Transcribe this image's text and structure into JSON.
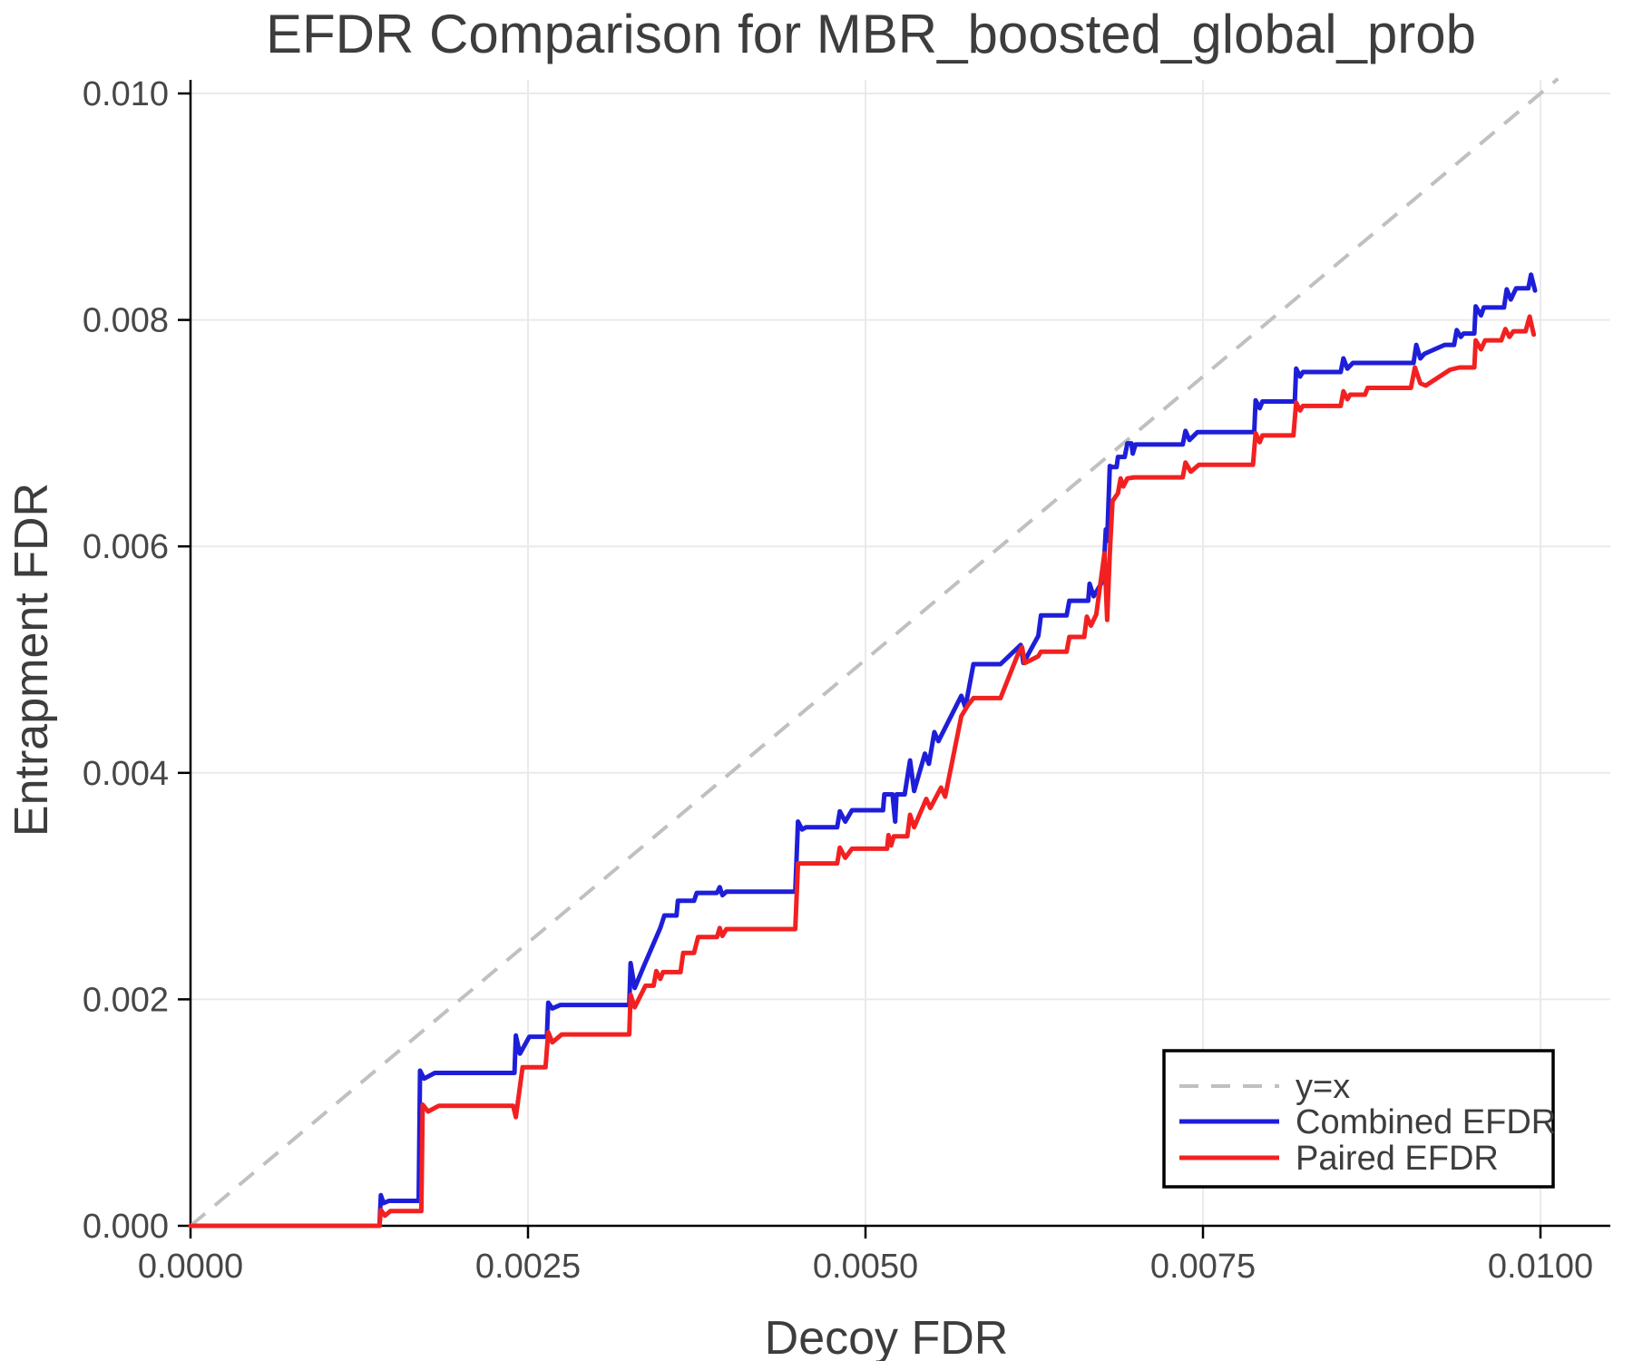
{
  "chart_data": {
    "type": "line",
    "title": "EFDR Comparison for MBR_boosted_global_prob",
    "xlabel": "Decoy FDR",
    "ylabel": "Entrapment FDR",
    "xlim": [
      0.0,
      0.0103
    ],
    "ylim": [
      0.0,
      0.0101
    ],
    "x_ticks": [
      0.0,
      0.0025,
      0.005,
      0.0075,
      0.01
    ],
    "x_tick_labels": [
      "0.0000",
      "0.0025",
      "0.0050",
      "0.0075",
      "0.0100"
    ],
    "y_ticks": [
      0.0,
      0.002,
      0.004,
      0.006,
      0.008,
      0.01
    ],
    "y_tick_labels": [
      "0.000",
      "0.002",
      "0.004",
      "0.006",
      "0.008",
      "0.010"
    ],
    "grid": true,
    "legend_position": "lower right",
    "reference_line": {
      "label": "y=x",
      "style": "dashed",
      "color": "#c0c0c0",
      "points": [
        [
          0.0,
          0.0
        ],
        [
          0.01013,
          0.01013
        ]
      ]
    },
    "series": [
      {
        "name": "Combined EFDR",
        "color": "#1e1ed9",
        "points": [
          [
            0.0,
            0.0
          ],
          [
            0.0014,
            0.0
          ],
          [
            0.00141,
            0.00027
          ],
          [
            0.00143,
            0.0002
          ],
          [
            0.00147,
            0.00022
          ],
          [
            0.00169,
            0.00022
          ],
          [
            0.0017,
            0.00137
          ],
          [
            0.00173,
            0.0013
          ],
          [
            0.00181,
            0.00135
          ],
          [
            0.0024,
            0.00135
          ],
          [
            0.00241,
            0.00168
          ],
          [
            0.00244,
            0.00152
          ],
          [
            0.00251,
            0.00167
          ],
          [
            0.00264,
            0.00167
          ],
          [
            0.00265,
            0.00197
          ],
          [
            0.00268,
            0.00192
          ],
          [
            0.00274,
            0.00195
          ],
          [
            0.00325,
            0.00195
          ],
          [
            0.00326,
            0.00232
          ],
          [
            0.00329,
            0.0021
          ],
          [
            0.00336,
            0.0023
          ],
          [
            0.00348,
            0.00263
          ],
          [
            0.00351,
            0.00274
          ],
          [
            0.0036,
            0.00274
          ],
          [
            0.00361,
            0.00287
          ],
          [
            0.00373,
            0.00287
          ],
          [
            0.00375,
            0.00294
          ],
          [
            0.0039,
            0.00294
          ],
          [
            0.00392,
            0.00299
          ],
          [
            0.00394,
            0.00292
          ],
          [
            0.00397,
            0.00295
          ],
          [
            0.00448,
            0.00295
          ],
          [
            0.0045,
            0.00357
          ],
          [
            0.00453,
            0.0035
          ],
          [
            0.00456,
            0.00352
          ],
          [
            0.00479,
            0.00352
          ],
          [
            0.00481,
            0.00366
          ],
          [
            0.00485,
            0.00357
          ],
          [
            0.0049,
            0.00367
          ],
          [
            0.00513,
            0.00367
          ],
          [
            0.00514,
            0.00381
          ],
          [
            0.0052,
            0.00381
          ],
          [
            0.00522,
            0.00357
          ],
          [
            0.00523,
            0.00381
          ],
          [
            0.00529,
            0.00381
          ],
          [
            0.00533,
            0.00411
          ],
          [
            0.00536,
            0.00384
          ],
          [
            0.00544,
            0.00417
          ],
          [
            0.00547,
            0.00408
          ],
          [
            0.00551,
            0.00436
          ],
          [
            0.00554,
            0.00428
          ],
          [
            0.00571,
            0.00468
          ],
          [
            0.00574,
            0.00458
          ],
          [
            0.0058,
            0.00496
          ],
          [
            0.006,
            0.00496
          ],
          [
            0.00615,
            0.00513
          ],
          [
            0.00617,
            0.00497
          ],
          [
            0.00628,
            0.00521
          ],
          [
            0.0063,
            0.00539
          ],
          [
            0.00649,
            0.00539
          ],
          [
            0.00651,
            0.00552
          ],
          [
            0.00665,
            0.00552
          ],
          [
            0.00666,
            0.00567
          ],
          [
            0.00669,
            0.00556
          ],
          [
            0.00676,
            0.0057
          ],
          [
            0.00678,
            0.00615
          ],
          [
            0.00679,
            0.00605
          ],
          [
            0.00681,
            0.00671
          ],
          [
            0.00683,
            0.0067
          ],
          [
            0.00686,
            0.0067
          ],
          [
            0.00687,
            0.00679
          ],
          [
            0.00692,
            0.00679
          ],
          [
            0.00694,
            0.00691
          ],
          [
            0.00697,
            0.00691
          ],
          [
            0.00698,
            0.00682
          ],
          [
            0.007,
            0.0069
          ],
          [
            0.00735,
            0.0069
          ],
          [
            0.00737,
            0.00702
          ],
          [
            0.0074,
            0.00694
          ],
          [
            0.00746,
            0.00701
          ],
          [
            0.00788,
            0.00701
          ],
          [
            0.00789,
            0.00729
          ],
          [
            0.00792,
            0.00722
          ],
          [
            0.00794,
            0.00728
          ],
          [
            0.00818,
            0.00728
          ],
          [
            0.00819,
            0.00757
          ],
          [
            0.00822,
            0.0075
          ],
          [
            0.00824,
            0.00754
          ],
          [
            0.00852,
            0.00754
          ],
          [
            0.00854,
            0.00766
          ],
          [
            0.00857,
            0.00757
          ],
          [
            0.00861,
            0.00762
          ],
          [
            0.00906,
            0.00762
          ],
          [
            0.00908,
            0.00778
          ],
          [
            0.00911,
            0.00766
          ],
          [
            0.00914,
            0.0077
          ],
          [
            0.00929,
            0.00778
          ],
          [
            0.00936,
            0.00778
          ],
          [
            0.00938,
            0.00791
          ],
          [
            0.00941,
            0.00785
          ],
          [
            0.00943,
            0.00788
          ],
          [
            0.00951,
            0.00788
          ],
          [
            0.00952,
            0.00812
          ],
          [
            0.00956,
            0.00804
          ],
          [
            0.00958,
            0.00811
          ],
          [
            0.00973,
            0.00811
          ],
          [
            0.00975,
            0.00827
          ],
          [
            0.00978,
            0.00818
          ],
          [
            0.00982,
            0.00828
          ],
          [
            0.00991,
            0.00828
          ],
          [
            0.00993,
            0.0084
          ],
          [
            0.00996,
            0.00826
          ]
        ]
      },
      {
        "name": "Paired EFDR",
        "color": "#f22121",
        "points": [
          [
            0.0,
            0.0
          ],
          [
            0.0014,
            0.0
          ],
          [
            0.00141,
            0.00014
          ],
          [
            0.00144,
            9e-05
          ],
          [
            0.00148,
            0.00013
          ],
          [
            0.00171,
            0.00013
          ],
          [
            0.00172,
            0.00107
          ],
          [
            0.00176,
            0.00101
          ],
          [
            0.00184,
            0.00106
          ],
          [
            0.00239,
            0.00106
          ],
          [
            0.00241,
            0.00096
          ],
          [
            0.00246,
            0.0014
          ],
          [
            0.00263,
            0.0014
          ],
          [
            0.00265,
            0.00171
          ],
          [
            0.00268,
            0.00162
          ],
          [
            0.00275,
            0.00169
          ],
          [
            0.00325,
            0.00169
          ],
          [
            0.00326,
            0.00204
          ],
          [
            0.00329,
            0.00193
          ],
          [
            0.00337,
            0.00212
          ],
          [
            0.00343,
            0.00212
          ],
          [
            0.00345,
            0.00225
          ],
          [
            0.00348,
            0.00218
          ],
          [
            0.0035,
            0.00224
          ],
          [
            0.00363,
            0.00224
          ],
          [
            0.00365,
            0.00241
          ],
          [
            0.00373,
            0.00241
          ],
          [
            0.00376,
            0.00255
          ],
          [
            0.0039,
            0.00255
          ],
          [
            0.00392,
            0.00263
          ],
          [
            0.00394,
            0.00256
          ],
          [
            0.00397,
            0.00262
          ],
          [
            0.00448,
            0.00262
          ],
          [
            0.0045,
            0.0032
          ],
          [
            0.00479,
            0.0032
          ],
          [
            0.00481,
            0.00334
          ],
          [
            0.00485,
            0.00325
          ],
          [
            0.0049,
            0.00333
          ],
          [
            0.00516,
            0.00333
          ],
          [
            0.00517,
            0.00345
          ],
          [
            0.00519,
            0.00336
          ],
          [
            0.00521,
            0.00344
          ],
          [
            0.00531,
            0.00344
          ],
          [
            0.00533,
            0.00363
          ],
          [
            0.00536,
            0.00352
          ],
          [
            0.00545,
            0.00377
          ],
          [
            0.00548,
            0.00369
          ],
          [
            0.00556,
            0.00387
          ],
          [
            0.00559,
            0.00379
          ],
          [
            0.00571,
            0.0045
          ],
          [
            0.00576,
            0.0046
          ],
          [
            0.0058,
            0.00466
          ],
          [
            0.006,
            0.00466
          ],
          [
            0.00613,
            0.00505
          ],
          [
            0.00616,
            0.00511
          ],
          [
            0.00618,
            0.00497
          ],
          [
            0.00628,
            0.00503
          ],
          [
            0.0063,
            0.00507
          ],
          [
            0.00649,
            0.00507
          ],
          [
            0.00651,
            0.0052
          ],
          [
            0.00662,
            0.0052
          ],
          [
            0.00664,
            0.00538
          ],
          [
            0.00667,
            0.0053
          ],
          [
            0.00671,
            0.0054
          ],
          [
            0.00677,
            0.00594
          ],
          [
            0.00679,
            0.00535
          ],
          [
            0.00681,
            0.00594
          ],
          [
            0.00683,
            0.0064
          ],
          [
            0.00687,
            0.00647
          ],
          [
            0.00689,
            0.0066
          ],
          [
            0.00691,
            0.00653
          ],
          [
            0.00694,
            0.0066
          ],
          [
            0.00699,
            0.00661
          ],
          [
            0.00735,
            0.00661
          ],
          [
            0.00737,
            0.00674
          ],
          [
            0.00741,
            0.00666
          ],
          [
            0.00747,
            0.00672
          ],
          [
            0.00787,
            0.00672
          ],
          [
            0.00789,
            0.007
          ],
          [
            0.00792,
            0.00692
          ],
          [
            0.00794,
            0.00698
          ],
          [
            0.00817,
            0.00698
          ],
          [
            0.00819,
            0.00727
          ],
          [
            0.00822,
            0.0072
          ],
          [
            0.00824,
            0.00724
          ],
          [
            0.00852,
            0.00724
          ],
          [
            0.00854,
            0.00737
          ],
          [
            0.00857,
            0.0073
          ],
          [
            0.00859,
            0.00734
          ],
          [
            0.0087,
            0.00734
          ],
          [
            0.00872,
            0.0074
          ],
          [
            0.00904,
            0.0074
          ],
          [
            0.00907,
            0.00758
          ],
          [
            0.00911,
            0.00744
          ],
          [
            0.00915,
            0.00742
          ],
          [
            0.00933,
            0.00756
          ],
          [
            0.0094,
            0.00758
          ],
          [
            0.00951,
            0.00758
          ],
          [
            0.00952,
            0.00782
          ],
          [
            0.00956,
            0.00774
          ],
          [
            0.00959,
            0.00782
          ],
          [
            0.00971,
            0.00782
          ],
          [
            0.00974,
            0.00792
          ],
          [
            0.00977,
            0.00785
          ],
          [
            0.0098,
            0.0079
          ],
          [
            0.00989,
            0.0079
          ],
          [
            0.00992,
            0.00803
          ],
          [
            0.00995,
            0.00787
          ]
        ]
      }
    ]
  },
  "colors": {
    "background": "#ffffff",
    "grid": "#eaeaea",
    "axis": "#000000",
    "text": "#3d3d3d",
    "tick_text": "#474747",
    "combined": "#1e1ed9",
    "paired": "#f22121",
    "reference": "#c0c0c0"
  }
}
